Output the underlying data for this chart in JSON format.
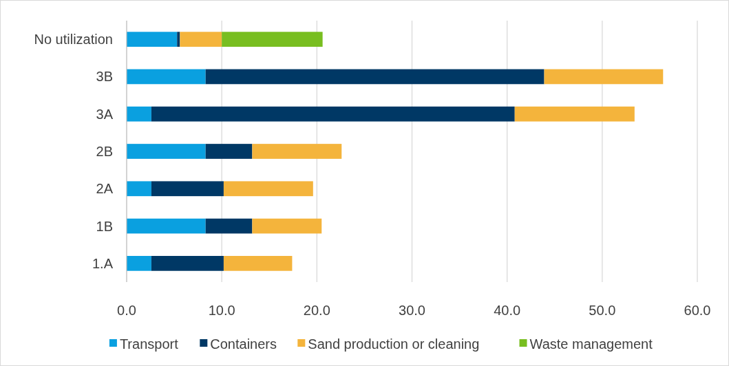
{
  "chart_data": {
    "type": "bar",
    "orientation": "horizontal",
    "stacked": true,
    "categories": [
      "No utilization",
      "3B",
      "3A",
      "2B",
      "2A",
      "1B",
      "1.A"
    ],
    "series": [
      {
        "name": "Transport",
        "color": "#0aa0e0",
        "values": [
          5.3,
          8.3,
          2.6,
          8.3,
          2.6,
          8.3,
          2.6
        ]
      },
      {
        "name": "Containers",
        "color": "#003865",
        "values": [
          0.3,
          35.6,
          38.2,
          4.9,
          7.6,
          4.9,
          7.6
        ]
      },
      {
        "name": "Sand production or cleaning",
        "color": "#f4b43c",
        "values": [
          4.4,
          12.5,
          12.6,
          9.4,
          9.4,
          7.3,
          7.2
        ]
      },
      {
        "name": "Waste management",
        "color": "#78be20",
        "values": [
          10.6,
          0,
          0,
          0,
          0,
          0,
          0
        ]
      }
    ],
    "xlim": [
      0,
      60
    ],
    "xticks": [
      {
        "value": 0,
        "label": "0.0"
      },
      {
        "value": 10,
        "label": "10.0"
      },
      {
        "value": 20,
        "label": "20.0"
      },
      {
        "value": 30,
        "label": "30.0"
      },
      {
        "value": 40,
        "label": "40.0"
      },
      {
        "value": 50,
        "label": "50.0"
      },
      {
        "value": 60,
        "label": "60.0"
      }
    ],
    "grid": "x",
    "legend": "bottom"
  }
}
